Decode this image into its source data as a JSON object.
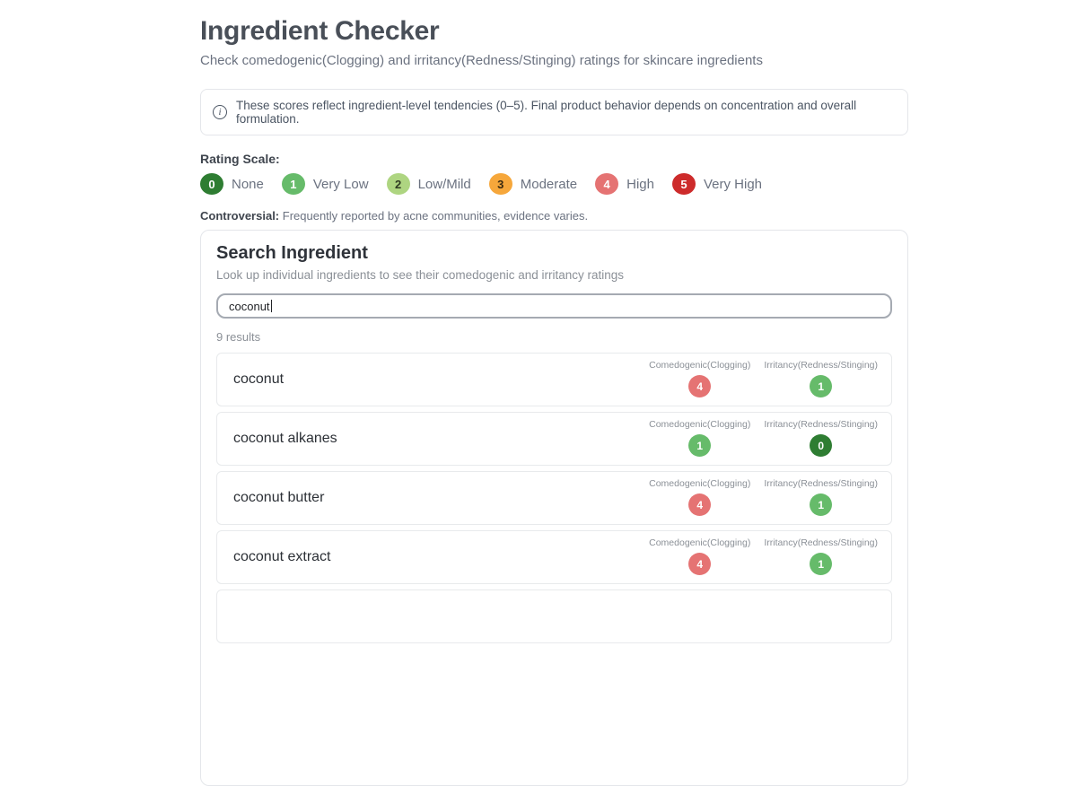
{
  "page": {
    "title": "Ingredient Checker",
    "subtitle": "Check comedogenic(Clogging) and irritancy(Redness/Stinging) ratings for skincare ingredients"
  },
  "info_banner": {
    "icon_glyph": "i",
    "text": "These scores reflect ingredient-level tendencies (0–5). Final product behavior depends on concentration and overall formulation."
  },
  "rating_scale": {
    "label": "Rating Scale:",
    "items": [
      {
        "value": "0",
        "label": "None",
        "color": "#2e7d32",
        "text_color": "#ffffff"
      },
      {
        "value": "1",
        "label": "Very Low",
        "color": "#66bb6a",
        "text_color": "#ffffff"
      },
      {
        "value": "2",
        "label": "Low/Mild",
        "color": "#aed581",
        "text_color": "#2f3a22"
      },
      {
        "value": "3",
        "label": "Moderate",
        "color": "#f6a73b",
        "text_color": "#3a2a10"
      },
      {
        "value": "4",
        "label": "High",
        "color": "#e57373",
        "text_color": "#ffffff"
      },
      {
        "value": "5",
        "label": "Very High",
        "color": "#cd2b2b",
        "text_color": "#ffffff"
      }
    ]
  },
  "controversial_note": {
    "label": "Controversial:",
    "text": "Frequently reported by acne communities, evidence varies."
  },
  "search_card": {
    "title": "Search Ingredient",
    "subtitle": "Look up individual ingredients to see their comedogenic and irritancy ratings",
    "input_value": "coconut",
    "results_count": "9 results",
    "columns": {
      "comedogenic": "Comedogenic(Clogging)",
      "irritancy": "Irritancy(Redness/Stinging)"
    },
    "results": [
      {
        "name": "coconut",
        "comedogenic": "4",
        "irritancy": "1"
      },
      {
        "name": "coconut alkanes",
        "comedogenic": "1",
        "irritancy": "0"
      },
      {
        "name": "coconut butter",
        "comedogenic": "4",
        "irritancy": "1"
      },
      {
        "name": "coconut extract",
        "comedogenic": "4",
        "irritancy": "1"
      }
    ]
  }
}
